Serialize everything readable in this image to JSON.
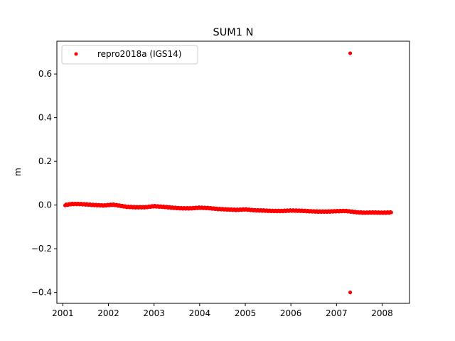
{
  "chart_data": {
    "type": "scatter",
    "title": "SUM1 N",
    "xlabel": "",
    "ylabel": "m",
    "xlim": [
      2000.87,
      2008.6
    ],
    "ylim": [
      -0.45,
      0.75
    ],
    "x_ticks": [
      2001,
      2002,
      2003,
      2004,
      2005,
      2006,
      2007,
      2008
    ],
    "x_tick_labels": [
      "2001",
      "2002",
      "2003",
      "2004",
      "2005",
      "2006",
      "2007",
      "2008"
    ],
    "y_ticks": [
      -0.4,
      -0.2,
      0.0,
      0.2,
      0.4,
      0.6
    ],
    "y_tick_labels": [
      "−0.4",
      "−0.2",
      "0.0",
      "0.2",
      "0.4",
      "0.6"
    ],
    "grid": false,
    "legend_position": "top-left",
    "series": [
      {
        "name": "repro2018a (IGS14)",
        "color": "#ff0000",
        "marker": "circle",
        "x": [
          2001.05,
          2001.2,
          2001.35,
          2001.5,
          2001.7,
          2001.9,
          2002.1,
          2002.25,
          2002.4,
          2002.6,
          2002.8,
          2003.0,
          2003.2,
          2003.4,
          2003.6,
          2003.8,
          2004.0,
          2004.2,
          2004.4,
          2004.6,
          2004.8,
          2005.0,
          2005.2,
          2005.4,
          2005.6,
          2005.8,
          2006.0,
          2006.2,
          2006.4,
          2006.6,
          2006.8,
          2007.0,
          2007.2,
          2007.3,
          2007.3,
          2007.45,
          2007.6,
          2007.8,
          2008.0,
          2008.2
        ],
        "y": [
          0.0,
          0.005,
          0.005,
          0.003,
          0.0,
          -0.002,
          0.002,
          -0.003,
          -0.008,
          -0.01,
          -0.01,
          -0.005,
          -0.008,
          -0.012,
          -0.015,
          -0.015,
          -0.012,
          -0.014,
          -0.018,
          -0.02,
          -0.022,
          -0.02,
          -0.024,
          -0.025,
          -0.027,
          -0.027,
          -0.025,
          -0.026,
          -0.028,
          -0.03,
          -0.03,
          -0.028,
          -0.027,
          0.695,
          -0.4,
          -0.033,
          -0.035,
          -0.034,
          -0.035,
          -0.034
        ]
      }
    ]
  }
}
